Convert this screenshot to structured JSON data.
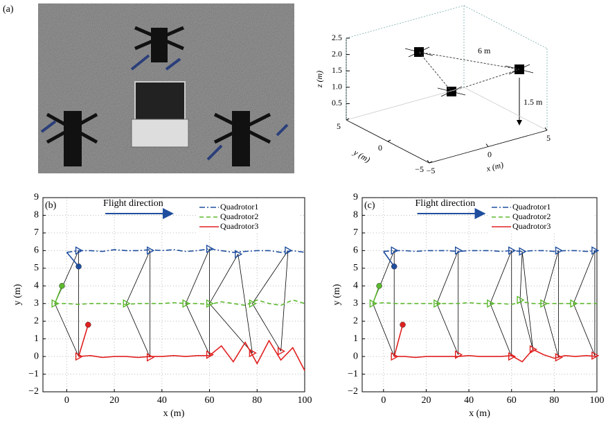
{
  "panel_a": {
    "label": "(a)",
    "plot3d": {
      "xlabel": "x (m)",
      "ylabel": "y (m)",
      "zlabel": "z (m)",
      "xlim": [
        -5,
        5
      ],
      "ylim": [
        -5,
        5
      ],
      "zlim": [
        0,
        2.5
      ],
      "xticks": [
        {
          "value": -5,
          "label": "−5"
        },
        0,
        5
      ],
      "yticks": [
        {
          "value": -5,
          "label": "−5"
        },
        0,
        5
      ],
      "zticks": [
        0.5,
        {
          "value": 1,
          "label": "1.0"
        },
        1.5,
        {
          "value": 2,
          "label": "2.0"
        },
        2.5
      ],
      "annotations": [
        "6 m",
        "1.5 m"
      ]
    }
  },
  "chart_data": [
    {
      "type": "line",
      "panel_label": "(b)",
      "annotation": "Flight direction",
      "xlabel": "x (m)",
      "ylabel": "y (m)",
      "x": [
        -5,
        0,
        5,
        10,
        15,
        20,
        25,
        30,
        35,
        40,
        45,
        50,
        55,
        60,
        65,
        70,
        75,
        80,
        85,
        90,
        95,
        100
      ],
      "series": [
        {
          "name": "Quadrotor1",
          "color": "#1f4e9e",
          "linestyle": "dashdot",
          "values": [
            null,
            5.9,
            6.0,
            6.0,
            5.95,
            6.05,
            6.0,
            6.0,
            6.05,
            6.0,
            6.05,
            5.95,
            6.0,
            6.1,
            6.0,
            5.9,
            5.95,
            6.0,
            6.0,
            5.9,
            6.0,
            5.9
          ],
          "markers": {
            "x": [
              5,
              35,
              60,
              72,
              93
            ],
            "y": [
              6.0,
              6.0,
              6.1,
              5.8,
              6.0
            ]
          },
          "start": {
            "x": 5,
            "y": 5.1
          }
        },
        {
          "name": "Quadrotor2",
          "color": "#5cb82e",
          "linestyle": "dashed",
          "values": [
            3.0,
            3.0,
            2.95,
            3.0,
            3.0,
            3.0,
            2.95,
            3.0,
            3.0,
            3.0,
            3.05,
            3.0,
            3.0,
            2.95,
            3.1,
            3.0,
            2.9,
            3.2,
            3.0,
            2.9,
            3.2,
            3.0
          ],
          "markers": {
            "x": [
              -5,
              25,
              50,
              60,
              78
            ],
            "y": [
              3.0,
              3.0,
              3.0,
              3.0,
              3.0
            ]
          },
          "start": {
            "x": -2,
            "y": 4.0
          }
        },
        {
          "name": "Quadrotor3",
          "color": "#e02020",
          "linestyle": "solid",
          "values": [
            null,
            null,
            0.0,
            0.05,
            -0.05,
            0.0,
            0.0,
            -0.05,
            0.0,
            0.0,
            0.05,
            0.0,
            0.05,
            0.05,
            0.6,
            -0.3,
            0.8,
            -0.4,
            0.9,
            -0.2,
            0.5,
            -0.8
          ],
          "markers": {
            "x": [
              5,
              35,
              60,
              78,
              90
            ],
            "y": [
              0.0,
              -0.05,
              0.1,
              0.2,
              0.3
            ]
          },
          "start": {
            "x": 9,
            "y": 1.8
          }
        }
      ],
      "xlim": [
        -10,
        100
      ],
      "ylim": [
        -2,
        9
      ],
      "xticks": [
        0,
        20,
        40,
        60,
        80,
        100
      ],
      "yticks": [
        {
          "value": -2,
          "label": "−2"
        },
        {
          "value": -1,
          "label": "−1"
        },
        0,
        1,
        2,
        3,
        4,
        5,
        6,
        7,
        8,
        9
      ],
      "grid": true,
      "legend": "upper right"
    },
    {
      "type": "line",
      "panel_label": "(c)",
      "annotation": "Flight direction",
      "xlabel": "x (m)",
      "ylabel": "y (m)",
      "x": [
        -5,
        0,
        5,
        10,
        15,
        20,
        25,
        30,
        35,
        40,
        45,
        50,
        55,
        60,
        65,
        70,
        75,
        80,
        85,
        90,
        95,
        100
      ],
      "series": [
        {
          "name": "Quadrotor1",
          "color": "#1f4e9e",
          "linestyle": "dashdot",
          "values": [
            null,
            5.95,
            6.0,
            6.0,
            5.95,
            6.0,
            6.0,
            6.0,
            5.95,
            6.0,
            6.0,
            6.0,
            5.95,
            6.0,
            5.95,
            6.0,
            6.0,
            5.95,
            6.0,
            6.0,
            5.95,
            6.0
          ],
          "markers": {
            "x": [
              5,
              35,
              60,
              65,
              82,
              99
            ],
            "y": [
              6.0,
              6.0,
              6.0,
              5.95,
              6.0,
              6.0
            ]
          },
          "start": {
            "x": 5,
            "y": 5.1
          }
        },
        {
          "name": "Quadrotor2",
          "color": "#5cb82e",
          "linestyle": "dashed",
          "values": [
            3.0,
            3.05,
            3.0,
            3.0,
            3.0,
            3.0,
            3.0,
            3.0,
            3.0,
            3.05,
            3.0,
            3.0,
            3.0,
            2.95,
            3.1,
            3.0,
            3.0,
            3.0,
            3.0,
            3.0,
            3.0,
            3.0
          ],
          "markers": {
            "x": [
              -5,
              25,
              50,
              64,
              75,
              89
            ],
            "y": [
              3.0,
              3.0,
              3.0,
              3.2,
              3.0,
              3.0
            ]
          },
          "start": {
            "x": -2,
            "y": 4.0
          }
        },
        {
          "name": "Quadrotor3",
          "color": "#e02020",
          "linestyle": "solid",
          "values": [
            null,
            null,
            0.0,
            0.0,
            -0.05,
            0.0,
            0.0,
            0.0,
            0.0,
            0.05,
            0.0,
            0.0,
            0.0,
            0.05,
            -0.3,
            0.4,
            0.1,
            -0.1,
            0.05,
            0.0,
            0.05,
            0.0
          ],
          "markers": {
            "x": [
              5,
              35,
              60,
              70,
              82,
              99
            ],
            "y": [
              0.0,
              0.1,
              0.0,
              0.4,
              -0.05,
              0.05
            ]
          },
          "start": {
            "x": 9,
            "y": 1.8
          }
        }
      ],
      "xlim": [
        -10,
        100
      ],
      "ylim": [
        -2,
        9
      ],
      "xticks": [
        0,
        20,
        40,
        60,
        80,
        100
      ],
      "yticks": [
        {
          "value": -2,
          "label": "−2"
        },
        {
          "value": -1,
          "label": "−1"
        },
        0,
        1,
        2,
        3,
        4,
        5,
        6,
        7,
        8,
        9
      ],
      "grid": true,
      "legend": "upper right"
    }
  ]
}
